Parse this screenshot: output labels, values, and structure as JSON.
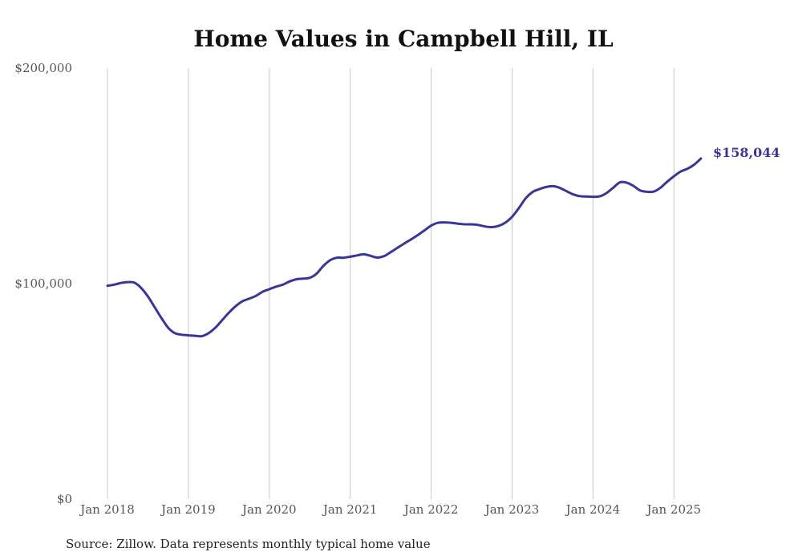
{
  "chart_data": {
    "type": "line",
    "title": "Home Values in Campbell Hill, IL",
    "xlabel": "",
    "ylabel": "",
    "x_ticks": [
      "Jan 2018",
      "Jan 2019",
      "Jan 2020",
      "Jan 2021",
      "Jan 2022",
      "Jan 2023",
      "Jan 2024",
      "Jan 2025"
    ],
    "y_ticks": [
      "$0",
      "$100,000",
      "$200,000"
    ],
    "ylim": [
      0,
      200000
    ],
    "xlim": [
      "2018-01",
      "2025-05"
    ],
    "grid": "vertical",
    "series": [
      {
        "color": "#3a3596",
        "points": [
          [
            "2018-01",
            99000
          ],
          [
            "2018-02",
            99500
          ],
          [
            "2018-03",
            100300
          ],
          [
            "2018-04",
            100700
          ],
          [
            "2018-05",
            100400
          ],
          [
            "2018-06",
            98000
          ],
          [
            "2018-07",
            94000
          ],
          [
            "2018-08",
            89000
          ],
          [
            "2018-09",
            84000
          ],
          [
            "2018-10",
            79500
          ],
          [
            "2018-11",
            77000
          ],
          [
            "2018-12",
            76300
          ],
          [
            "2019-01",
            76000
          ],
          [
            "2019-02",
            75800
          ],
          [
            "2019-03",
            75600
          ],
          [
            "2019-04",
            77000
          ],
          [
            "2019-05",
            79500
          ],
          [
            "2019-06",
            83000
          ],
          [
            "2019-07",
            86500
          ],
          [
            "2019-08",
            89500
          ],
          [
            "2019-09",
            91800
          ],
          [
            "2019-10",
            93000
          ],
          [
            "2019-11",
            94300
          ],
          [
            "2019-12",
            96200
          ],
          [
            "2020-01",
            97400
          ],
          [
            "2020-02",
            98600
          ],
          [
            "2020-03",
            99500
          ],
          [
            "2020-04",
            101000
          ],
          [
            "2020-05",
            102000
          ],
          [
            "2020-06",
            102300
          ],
          [
            "2020-07",
            102700
          ],
          [
            "2020-08",
            104600
          ],
          [
            "2020-09",
            108200
          ],
          [
            "2020-10",
            110800
          ],
          [
            "2020-11",
            112000
          ],
          [
            "2020-12",
            112000
          ],
          [
            "2021-01",
            112500
          ],
          [
            "2021-02",
            113100
          ],
          [
            "2021-03",
            113600
          ],
          [
            "2021-04",
            112900
          ],
          [
            "2021-05",
            112100
          ],
          [
            "2021-06",
            112700
          ],
          [
            "2021-07",
            114600
          ],
          [
            "2021-08",
            116600
          ],
          [
            "2021-09",
            118600
          ],
          [
            "2021-10",
            120500
          ],
          [
            "2021-11",
            122500
          ],
          [
            "2021-12",
            124700
          ],
          [
            "2022-01",
            126900
          ],
          [
            "2022-02",
            128200
          ],
          [
            "2022-03",
            128400
          ],
          [
            "2022-04",
            128200
          ],
          [
            "2022-05",
            127800
          ],
          [
            "2022-06",
            127500
          ],
          [
            "2022-07",
            127500
          ],
          [
            "2022-08",
            127200
          ],
          [
            "2022-09",
            126500
          ],
          [
            "2022-10",
            126200
          ],
          [
            "2022-11",
            126800
          ],
          [
            "2022-12",
            128300
          ],
          [
            "2023-01",
            131000
          ],
          [
            "2023-02",
            135000
          ],
          [
            "2023-03",
            139500
          ],
          [
            "2023-04",
            142400
          ],
          [
            "2023-05",
            143800
          ],
          [
            "2023-06",
            144800
          ],
          [
            "2023-07",
            145200
          ],
          [
            "2023-08",
            144500
          ],
          [
            "2023-09",
            143000
          ],
          [
            "2023-10",
            141500
          ],
          [
            "2023-11",
            140600
          ],
          [
            "2023-12",
            140400
          ],
          [
            "2024-01",
            140300
          ],
          [
            "2024-02",
            140500
          ],
          [
            "2024-03",
            142000
          ],
          [
            "2024-04",
            144500
          ],
          [
            "2024-05",
            147000
          ],
          [
            "2024-06",
            146800
          ],
          [
            "2024-07",
            145300
          ],
          [
            "2024-08",
            143200
          ],
          [
            "2024-09",
            142600
          ],
          [
            "2024-10",
            142700
          ],
          [
            "2024-11",
            144500
          ],
          [
            "2024-12",
            147300
          ],
          [
            "2025-01",
            149800
          ],
          [
            "2025-02",
            152000
          ],
          [
            "2025-03",
            153300
          ],
          [
            "2025-04",
            155200
          ],
          [
            "2025-05",
            158044
          ]
        ]
      }
    ],
    "end_label": "$158,044",
    "source": "Source: Zillow. Data represents monthly typical home value"
  }
}
